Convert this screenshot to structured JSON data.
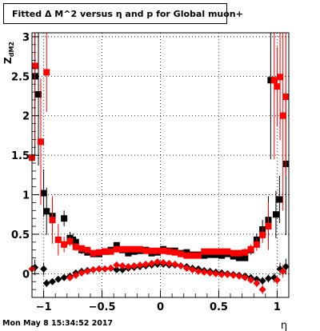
{
  "title": "Fitted Δ M^2 versus η and p for Global muon+",
  "timestamp": "Mon May  8 15:34:52 2017",
  "chart_data": {
    "type": "scatter",
    "xlabel": "η",
    "ylabel": "Z",
    "ylabel_sub": "dM2",
    "xlim": [
      -1.1,
      1.1
    ],
    "ylim": [
      -0.3,
      3.05
    ],
    "grid": true,
    "x_ticks": [
      -1,
      -0.5,
      0,
      0.5,
      1
    ],
    "x_tick_labels": [
      "−1",
      "−0.5",
      "0",
      "0.5",
      "1"
    ],
    "y_ticks": [
      0,
      0.5,
      1,
      1.5,
      2,
      2.5,
      3
    ],
    "y_tick_labels": [
      "0",
      "0.5",
      "1",
      "1.5",
      "2",
      "2.5",
      "3"
    ],
    "colors": {
      "black": "#000000",
      "red": "#ff0000"
    },
    "series": [
      {
        "marker": "square",
        "color": "#000000",
        "points": [
          [
            -1.075,
            2.5,
            1.0
          ],
          [
            -1.045,
            2.27,
            0.9
          ],
          [
            -1.0,
            1.02,
            0.3
          ],
          [
            -0.975,
            0.79,
            0.3
          ],
          [
            -0.925,
            0.73,
            0.2
          ],
          [
            -0.825,
            0.7,
            0.1
          ],
          [
            -0.775,
            0.45,
            0.08
          ],
          [
            -0.75,
            0.43,
            0.08
          ],
          [
            -0.725,
            0.4,
            0.06
          ],
          [
            -0.675,
            0.3,
            0.05
          ],
          [
            -0.625,
            0.27,
            0.04
          ],
          [
            -0.575,
            0.25,
            0.03
          ],
          [
            -0.525,
            0.25,
            0.03
          ],
          [
            -0.475,
            0.28,
            0.03
          ],
          [
            -0.425,
            0.3,
            0.03
          ],
          [
            -0.375,
            0.36,
            0.03
          ],
          [
            -0.325,
            0.3,
            0.03
          ],
          [
            -0.275,
            0.26,
            0.03
          ],
          [
            -0.225,
            0.28,
            0.03
          ],
          [
            -0.175,
            0.29,
            0.03
          ],
          [
            -0.125,
            0.3,
            0.03
          ],
          [
            -0.075,
            0.26,
            0.03
          ],
          [
            -0.025,
            0.27,
            0.03
          ],
          [
            0.025,
            0.31,
            0.03
          ],
          [
            0.075,
            0.29,
            0.03
          ],
          [
            0.125,
            0.29,
            0.03
          ],
          [
            0.175,
            0.26,
            0.03
          ],
          [
            0.225,
            0.27,
            0.03
          ],
          [
            0.275,
            0.24,
            0.03
          ],
          [
            0.325,
            0.24,
            0.03
          ],
          [
            0.375,
            0.23,
            0.03
          ],
          [
            0.425,
            0.24,
            0.03
          ],
          [
            0.475,
            0.24,
            0.03
          ],
          [
            0.525,
            0.23,
            0.03
          ],
          [
            0.575,
            0.25,
            0.03
          ],
          [
            0.625,
            0.22,
            0.03
          ],
          [
            0.675,
            0.2,
            0.03
          ],
          [
            0.725,
            0.2,
            0.04
          ],
          [
            0.775,
            0.3,
            0.06
          ],
          [
            0.825,
            0.43,
            0.08
          ],
          [
            0.875,
            0.56,
            0.12
          ],
          [
            0.925,
            0.68,
            0.3
          ],
          [
            0.945,
            2.45,
            1.0
          ],
          [
            0.99,
            0.75,
            0.3
          ],
          [
            1.02,
            0.94,
            0.3
          ],
          [
            1.075,
            1.39,
            0.9
          ]
        ]
      },
      {
        "marker": "square",
        "color": "#ff0000",
        "points": [
          [
            -1.1,
            1.47,
            1.3
          ],
          [
            -1.075,
            2.63,
            1.0
          ],
          [
            -1.025,
            1.67,
            0.8
          ],
          [
            -0.975,
            2.55,
            0.5
          ],
          [
            -0.925,
            0.68,
            0.3
          ],
          [
            -0.875,
            0.43,
            0.2
          ],
          [
            -0.825,
            0.37,
            0.1
          ],
          [
            -0.775,
            0.41,
            0.06
          ],
          [
            -0.725,
            0.34,
            0.05
          ],
          [
            -0.675,
            0.32,
            0.04
          ],
          [
            -0.625,
            0.3,
            0.04
          ],
          [
            -0.575,
            0.26,
            0.03
          ],
          [
            -0.525,
            0.27,
            0.03
          ],
          [
            -0.475,
            0.28,
            0.03
          ],
          [
            -0.425,
            0.28,
            0.03
          ],
          [
            -0.375,
            0.31,
            0.03
          ],
          [
            -0.325,
            0.31,
            0.03
          ],
          [
            -0.275,
            0.31,
            0.03
          ],
          [
            -0.225,
            0.31,
            0.03
          ],
          [
            -0.175,
            0.31,
            0.03
          ],
          [
            -0.125,
            0.29,
            0.03
          ],
          [
            -0.075,
            0.29,
            0.03
          ],
          [
            -0.025,
            0.29,
            0.03
          ],
          [
            0.025,
            0.29,
            0.03
          ],
          [
            0.075,
            0.28,
            0.03
          ],
          [
            0.125,
            0.27,
            0.03
          ],
          [
            0.175,
            0.25,
            0.03
          ],
          [
            0.225,
            0.23,
            0.03
          ],
          [
            0.275,
            0.23,
            0.03
          ],
          [
            0.325,
            0.23,
            0.03
          ],
          [
            0.375,
            0.28,
            0.03
          ],
          [
            0.425,
            0.28,
            0.03
          ],
          [
            0.475,
            0.28,
            0.03
          ],
          [
            0.525,
            0.28,
            0.03
          ],
          [
            0.575,
            0.28,
            0.03
          ],
          [
            0.625,
            0.26,
            0.03
          ],
          [
            0.675,
            0.26,
            0.04
          ],
          [
            0.725,
            0.27,
            0.05
          ],
          [
            0.775,
            0.31,
            0.06
          ],
          [
            0.825,
            0.37,
            0.08
          ],
          [
            0.875,
            0.49,
            0.1
          ],
          [
            0.925,
            0.6,
            0.3
          ],
          [
            0.975,
            2.45,
            1.0
          ],
          [
            1.0,
            2.37,
            0.5
          ],
          [
            1.025,
            2.49,
            0.8
          ],
          [
            1.05,
            2.0,
            1.2
          ],
          [
            1.075,
            2.24,
            1.0
          ]
        ]
      },
      {
        "marker": "diamond",
        "color": "#000000",
        "points": [
          [
            -1.075,
            0.08,
            0.1
          ],
          [
            -1.0,
            0.06,
            0.08
          ],
          [
            -0.975,
            -0.12,
            0.05
          ],
          [
            -0.925,
            -0.1,
            0.04
          ],
          [
            -0.875,
            -0.07,
            0.03
          ],
          [
            -0.825,
            -0.05,
            0.03
          ],
          [
            -0.775,
            -0.03,
            0.02
          ],
          [
            -0.725,
            0.01,
            0.02
          ],
          [
            -0.675,
            0.03,
            0.02
          ],
          [
            -0.625,
            0.04,
            0.02
          ],
          [
            -0.575,
            0.05,
            0.02
          ],
          [
            -0.525,
            0.06,
            0.02
          ],
          [
            -0.475,
            0.06,
            0.02
          ],
          [
            -0.425,
            0.07,
            0.02
          ],
          [
            -0.375,
            0.05,
            0.02
          ],
          [
            -0.325,
            0.05,
            0.02
          ],
          [
            -0.275,
            0.07,
            0.02
          ],
          [
            -0.225,
            0.08,
            0.02
          ],
          [
            -0.175,
            0.09,
            0.02
          ],
          [
            -0.125,
            0.1,
            0.02
          ],
          [
            -0.075,
            0.11,
            0.02
          ],
          [
            -0.025,
            0.12,
            0.02
          ],
          [
            0.025,
            0.12,
            0.02
          ],
          [
            0.075,
            0.11,
            0.02
          ],
          [
            0.125,
            0.11,
            0.02
          ],
          [
            0.175,
            0.1,
            0.02
          ],
          [
            0.225,
            0.09,
            0.02
          ],
          [
            0.275,
            0.07,
            0.02
          ],
          [
            0.325,
            0.06,
            0.02
          ],
          [
            0.375,
            0.04,
            0.02
          ],
          [
            0.425,
            0.03,
            0.02
          ],
          [
            0.475,
            0.02,
            0.02
          ],
          [
            0.525,
            0.01,
            0.02
          ],
          [
            0.575,
            0.0,
            0.02
          ],
          [
            0.625,
            -0.01,
            0.02
          ],
          [
            0.675,
            -0.02,
            0.02
          ],
          [
            0.725,
            -0.03,
            0.03
          ],
          [
            0.775,
            -0.05,
            0.03
          ],
          [
            0.825,
            -0.07,
            0.04
          ],
          [
            0.875,
            -0.09,
            0.05
          ],
          [
            0.925,
            -0.06,
            0.05
          ],
          [
            0.975,
            -0.05,
            0.06
          ],
          [
            1.025,
            0.06,
            0.08
          ],
          [
            1.075,
            0.09,
            0.1
          ]
        ]
      },
      {
        "marker": "diamond",
        "color": "#ff0000",
        "points": [
          [
            -1.1,
            0.06,
            0.1
          ],
          [
            -0.775,
            -0.05,
            0.03
          ],
          [
            -0.725,
            -0.02,
            0.02
          ],
          [
            -0.675,
            0.01,
            0.02
          ],
          [
            -0.625,
            0.03,
            0.02
          ],
          [
            -0.575,
            0.05,
            0.02
          ],
          [
            -0.525,
            0.06,
            0.02
          ],
          [
            -0.475,
            0.06,
            0.02
          ],
          [
            -0.425,
            0.07,
            0.02
          ],
          [
            -0.375,
            0.11,
            0.02
          ],
          [
            -0.325,
            0.1,
            0.02
          ],
          [
            -0.275,
            0.09,
            0.02
          ],
          [
            -0.225,
            0.1,
            0.02
          ],
          [
            -0.175,
            0.11,
            0.02
          ],
          [
            -0.125,
            0.12,
            0.02
          ],
          [
            -0.075,
            0.13,
            0.02
          ],
          [
            -0.025,
            0.15,
            0.02
          ],
          [
            0.025,
            0.14,
            0.02
          ],
          [
            0.075,
            0.13,
            0.02
          ],
          [
            0.125,
            0.12,
            0.02
          ],
          [
            0.175,
            0.1,
            0.02
          ],
          [
            0.225,
            0.07,
            0.02
          ],
          [
            0.275,
            0.05,
            0.02
          ],
          [
            0.325,
            0.03,
            0.02
          ],
          [
            0.375,
            0.02,
            0.02
          ],
          [
            0.425,
            0.01,
            0.02
          ],
          [
            0.475,
            0.0,
            0.02
          ],
          [
            0.525,
            -0.01,
            0.02
          ],
          [
            0.575,
            -0.01,
            0.02
          ],
          [
            0.625,
            -0.02,
            0.02
          ],
          [
            0.675,
            -0.03,
            0.03
          ],
          [
            0.725,
            -0.05,
            0.03
          ],
          [
            0.775,
            -0.08,
            0.04
          ],
          [
            0.825,
            -0.12,
            0.05
          ],
          [
            0.875,
            -0.2,
            0.06
          ],
          [
            1.0,
            -0.08,
            0.06
          ],
          [
            1.05,
            0.03,
            0.08
          ]
        ]
      }
    ]
  }
}
